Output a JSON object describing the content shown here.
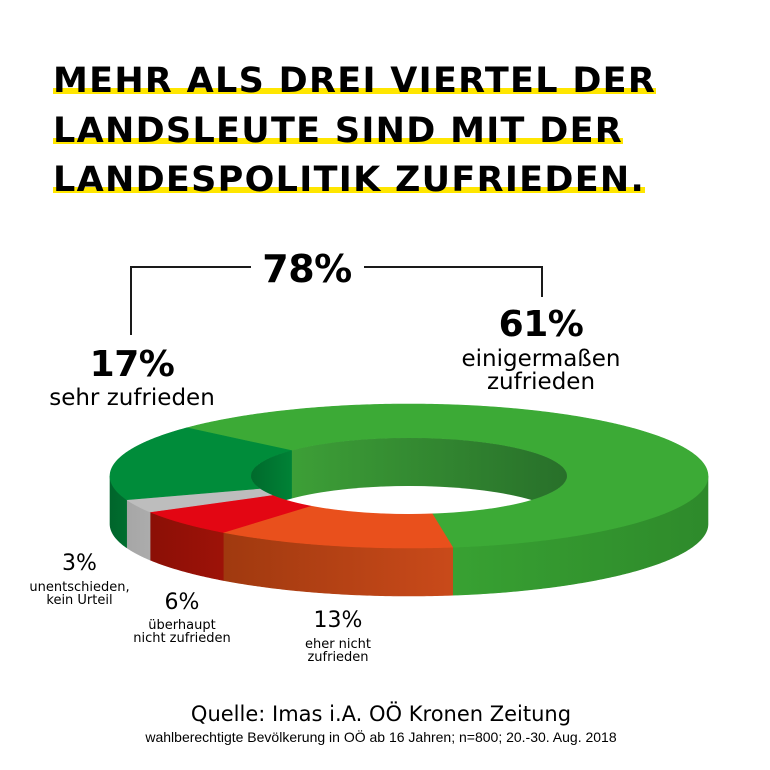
{
  "colors": {
    "highlight": "#ffe600",
    "text": "#000000"
  },
  "chart_data": {
    "type": "pie",
    "title_lines": [
      "MEHR ALS DREI VIERTEL DER",
      "LANDSLEUTE SIND MIT DER",
      "LANDESPOLITIK ZUFRIEDEN."
    ],
    "slices": [
      {
        "label": "einigermaßen\nzufrieden",
        "value": 61,
        "value_label": "61%",
        "color": "#3caa36",
        "side_color": "#38a132",
        "side_color_2": "#2e8a2b",
        "wall_color": "#3d9f37",
        "wall_color_2": "#28702a"
      },
      {
        "label": "eher nicht\nzufrieden",
        "value": 13,
        "value_label": "13%",
        "color": "#e9501c",
        "side_color": "#a0390f",
        "side_color_2": "#c94a1a",
        "wall_color": "#b5421a",
        "wall_color_2": "#b5421a"
      },
      {
        "label": "überhaupt\nnicht zufrieden",
        "value": 6,
        "value_label": "6%",
        "color": "#e30613",
        "side_color": "#8b0f06",
        "side_color_2": "#9d1208",
        "wall_color": "#8b0f06",
        "wall_color_2": "#8b0f06"
      },
      {
        "label": "unentschieden,\nkein Urteil",
        "value": 3,
        "value_label": "3%",
        "color": "#bdbdbd",
        "side_color": "#a6a6a6",
        "side_color_2": "#acacac",
        "wall_color": "#a6a6a6",
        "wall_color_2": "#a6a6a6"
      },
      {
        "label": "sehr zufrieden",
        "value": 17,
        "value_label": "17%",
        "color": "#008c3a",
        "side_color": "#00652b",
        "side_color_2": "#006e2f",
        "wall_color": "#006a2c",
        "wall_color_2": "#008236"
      }
    ],
    "bracket": {
      "label": "78%",
      "value": 78
    },
    "source": "Quelle: Imas i.A. OÖ Kronen Zeitung",
    "note": "wahlberechtigte Bevölkerung in OÖ ab 16 Jahren; n=800; 20.-30. Aug. 2018"
  }
}
